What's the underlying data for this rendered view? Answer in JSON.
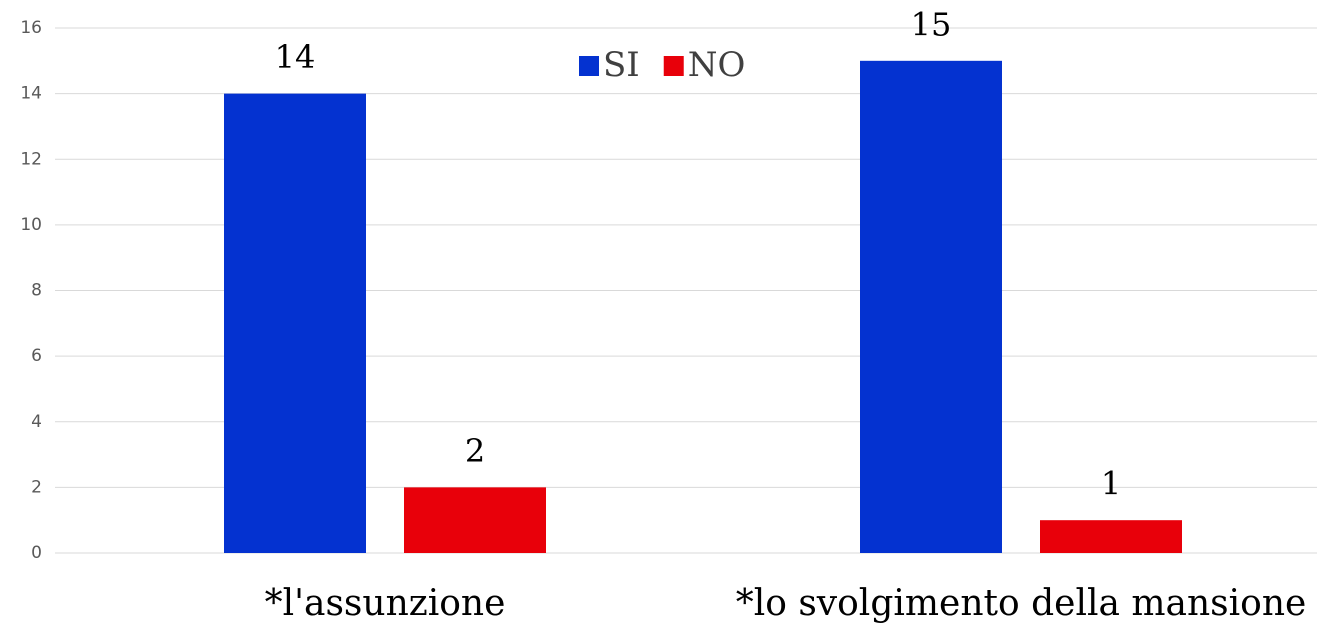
{
  "chart_data": {
    "type": "bar",
    "categories": [
      "*l'assunzione",
      "*lo svolgimento della mansione"
    ],
    "series": [
      {
        "name": "SI",
        "color": "#0432d0",
        "values": [
          14,
          15
        ]
      },
      {
        "name": "NO",
        "color": "#e8000a",
        "values": [
          2,
          1
        ]
      }
    ],
    "ylim": [
      0,
      16
    ],
    "yticks": [
      0,
      2,
      4,
      6,
      8,
      10,
      12,
      14,
      16
    ],
    "grid": true,
    "legend": "top"
  }
}
